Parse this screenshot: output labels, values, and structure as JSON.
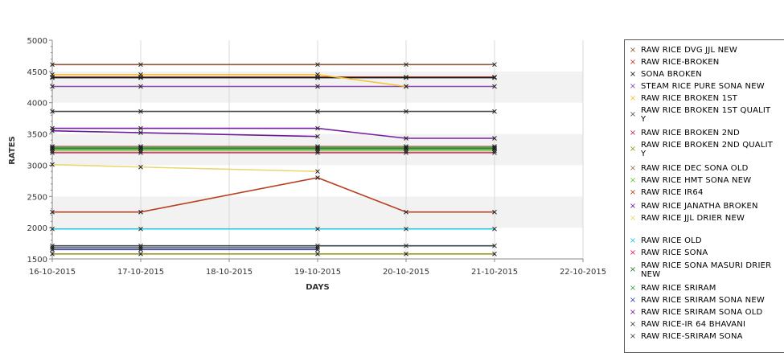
{
  "chart_data": {
    "type": "line",
    "xlabel": "DAYS",
    "ylabel": "RATES",
    "ylim": [
      1500,
      5000
    ],
    "yticks": [
      "1500",
      "2000",
      "2500",
      "3000",
      "3500",
      "4000",
      "4500",
      "5000"
    ],
    "xlim": [
      "16-10-2015",
      "22-10-2015"
    ],
    "xticks": [
      "16-10-2015",
      "17-10-2015",
      "18-10-2015",
      "19-10-2015",
      "20-10-2015",
      "21-10-2015",
      "22-10-2015"
    ],
    "grid": true,
    "legend_position": "right",
    "series": [
      {
        "name": "RAW RICE DVG JJL NEW",
        "color": "#8a5a3c",
        "x": [
          "16-10-2015",
          "17-10-2015",
          "19-10-2015",
          "20-10-2015",
          "21-10-2015"
        ],
        "values": [
          4610,
          4610,
          4610,
          4610,
          4610
        ]
      },
      {
        "name": "RAW RICE-BROKEN",
        "color": "#c0392b",
        "x": [
          "16-10-2015",
          "17-10-2015",
          "19-10-2015",
          "20-10-2015",
          "21-10-2015"
        ],
        "values": [
          4410,
          4410,
          4410,
          4410,
          4410
        ]
      },
      {
        "name": "SONA BROKEN",
        "color": "#1a1a1a",
        "x": [
          "16-10-2015",
          "17-10-2015",
          "19-10-2015",
          "20-10-2015",
          "21-10-2015"
        ],
        "values": [
          4400,
          4400,
          4400,
          4400,
          4400
        ]
      },
      {
        "name": "STEAM RICE PURE SONA NEW",
        "color": "#8e44ad",
        "x": [
          "16-10-2015",
          "17-10-2015",
          "19-10-2015",
          "20-10-2015",
          "21-10-2015"
        ],
        "values": [
          4260,
          4260,
          4260,
          4260,
          4260
        ]
      },
      {
        "name": "RAW RICE BROKEN 1ST",
        "color": "#f4c430",
        "x": [
          "16-10-2015",
          "17-10-2015",
          "19-10-2015",
          "20-10-2015"
        ],
        "values": [
          4450,
          4450,
          4450,
          4260
        ]
      },
      {
        "name": "RAW RICE BROKEN 1ST QUALITY",
        "color": "#555566",
        "x": [
          "16-10-2015",
          "17-10-2015",
          "19-10-2015"
        ],
        "values": [
          1680,
          1680,
          1680
        ]
      },
      {
        "name": "RAW RICE BROKEN 2ND",
        "color": "#b03060",
        "x": [
          "16-10-2015",
          "17-10-2015",
          "19-10-2015",
          "20-10-2015",
          "21-10-2015"
        ],
        "values": [
          3270,
          3270,
          3270,
          3270,
          3270
        ]
      },
      {
        "name": "RAW RICE BROKEN 2ND QUALITY",
        "color": "#9a9a20",
        "x": [
          "16-10-2015",
          "17-10-2015",
          "19-10-2015",
          "20-10-2015",
          "21-10-2015"
        ],
        "values": [
          1580,
          1580,
          1580,
          1580,
          1580
        ]
      },
      {
        "name": "RAW RICE DEC SONA OLD",
        "color": "#a07050",
        "x": [
          "16-10-2015",
          "17-10-2015",
          "19-10-2015",
          "20-10-2015",
          "21-10-2015"
        ],
        "values": [
          3300,
          3300,
          3300,
          3300,
          3300
        ]
      },
      {
        "name": "RAW RICE HMT SONA NEW",
        "color": "#66cc33",
        "x": [
          "16-10-2015",
          "17-10-2015",
          "19-10-2015",
          "20-10-2015",
          "21-10-2015"
        ],
        "values": [
          3230,
          3230,
          3230,
          3230,
          3230
        ]
      },
      {
        "name": "RAW RICE IR64",
        "color": "#b84020",
        "x": [
          "16-10-2015",
          "17-10-2015",
          "19-10-2015",
          "20-10-2015",
          "21-10-2015"
        ],
        "values": [
          2250,
          2250,
          2800,
          2250,
          2250
        ]
      },
      {
        "name": "RAW RICE JANATHA BROKEN",
        "color": "#6a1b9a",
        "x": [
          "16-10-2015",
          "17-10-2015",
          "19-10-2015"
        ],
        "values": [
          3550,
          3520,
          3460
        ]
      },
      {
        "name": "RAW RICE JJL DRIER NEW",
        "color": "#e8d870",
        "x": [
          "16-10-2015",
          "17-10-2015",
          "19-10-2015"
        ],
        "values": [
          3010,
          2970,
          2900
        ]
      },
      {
        "name": "RAW RICE OLD",
        "color": "#26c6da",
        "x": [
          "16-10-2015",
          "17-10-2015",
          "19-10-2015",
          "20-10-2015",
          "21-10-2015"
        ],
        "values": [
          1980,
          1980,
          1980,
          1980,
          1980
        ]
      },
      {
        "name": "RAW RICE SONA",
        "color": "#e91e63",
        "x": [
          "16-10-2015",
          "17-10-2015",
          "19-10-2015",
          "20-10-2015",
          "21-10-2015"
        ],
        "values": [
          3200,
          3200,
          3200,
          3200,
          3200
        ]
      },
      {
        "name": "RAW RICE SONA MASURI DRIER NEW",
        "color": "#2e7d32",
        "x": [
          "16-10-2015",
          "17-10-2015",
          "19-10-2015",
          "20-10-2015",
          "21-10-2015"
        ],
        "values": [
          3260,
          3260,
          3260,
          3260,
          3260
        ]
      },
      {
        "name": "RAW RICE SRIRAM",
        "color": "#43a047",
        "x": [
          "16-10-2015",
          "17-10-2015",
          "19-10-2015",
          "20-10-2015",
          "21-10-2015"
        ],
        "values": [
          3280,
          3280,
          3280,
          3280,
          3280
        ]
      },
      {
        "name": "RAW RICE SRIRAM SONA NEW",
        "color": "#3949ab",
        "x": [
          "16-10-2015",
          "17-10-2015",
          "19-10-2015"
        ],
        "values": [
          1650,
          1650,
          1650
        ]
      },
      {
        "name": "RAW RICE SRIRAM SONA OLD",
        "color": "#7b1fa2",
        "x": [
          "16-10-2015",
          "17-10-2015",
          "19-10-2015",
          "20-10-2015",
          "21-10-2015"
        ],
        "values": [
          3590,
          3590,
          3590,
          3430,
          3430
        ]
      },
      {
        "name": "RAW RICE-IR 64 BHAVANI",
        "color": "#37474f",
        "x": [
          "16-10-2015",
          "17-10-2015",
          "19-10-2015",
          "20-10-2015",
          "21-10-2015"
        ],
        "values": [
          1710,
          1710,
          1710,
          1710,
          1710
        ]
      },
      {
        "name": "RAW RICE-SRIRAM SONA",
        "color": "#4a4a4a",
        "x": [
          "16-10-2015",
          "17-10-2015",
          "19-10-2015",
          "20-10-2015",
          "21-10-2015"
        ],
        "values": [
          3860,
          3860,
          3860,
          3860,
          3860
        ]
      }
    ]
  },
  "legend": {
    "items": [
      {
        "label": "RAW RICE DVG JJL NEW",
        "color": "#8a5a3c"
      },
      {
        "label": "RAW RICE-BROKEN",
        "color": "#c0392b"
      },
      {
        "label": "SONA BROKEN",
        "color": "#1a1a1a"
      },
      {
        "label": "STEAM RICE PURE SONA NEW",
        "color": "#8e44ad"
      },
      {
        "label": "RAW RICE BROKEN 1ST",
        "color": "#f4c430"
      },
      {
        "label": "RAW RICE BROKEN 1ST QUALITY",
        "color": "#555566"
      },
      {
        "label": "RAW RICE BROKEN 2ND",
        "color": "#b03060"
      },
      {
        "label": "RAW RICE BROKEN 2ND QUALITY",
        "color": "#9a9a20"
      },
      {
        "label": "RAW RICE DEC SONA OLD",
        "color": "#a07050"
      },
      {
        "label": "RAW RICE HMT SONA NEW",
        "color": "#66cc33"
      },
      {
        "label": "RAW RICE IR64",
        "color": "#b84020"
      },
      {
        "label": "RAW RICE JANATHA BROKEN",
        "color": "#6a1b9a"
      },
      {
        "label": "RAW RICE JJL DRIER NEW",
        "color": "#e8d870"
      },
      {
        "label": "RAW RICE OLD",
        "color": "#26c6da"
      },
      {
        "label": "RAW RICE SONA",
        "color": "#e91e63"
      },
      {
        "label": "RAW RICE SONA MASURI DRIER NEW",
        "color": "#2e7d32"
      },
      {
        "label": "RAW RICE SRIRAM",
        "color": "#43a047"
      },
      {
        "label": "RAW RICE SRIRAM SONA NEW",
        "color": "#3949ab"
      },
      {
        "label": "RAW RICE SRIRAM SONA OLD",
        "color": "#7b1fa2"
      },
      {
        "label": "RAW RICE-IR 64 BHAVANI",
        "color": "#37474f"
      },
      {
        "label": "RAW RICE-SRIRAM SONA",
        "color": "#4a4a4a"
      }
    ]
  }
}
